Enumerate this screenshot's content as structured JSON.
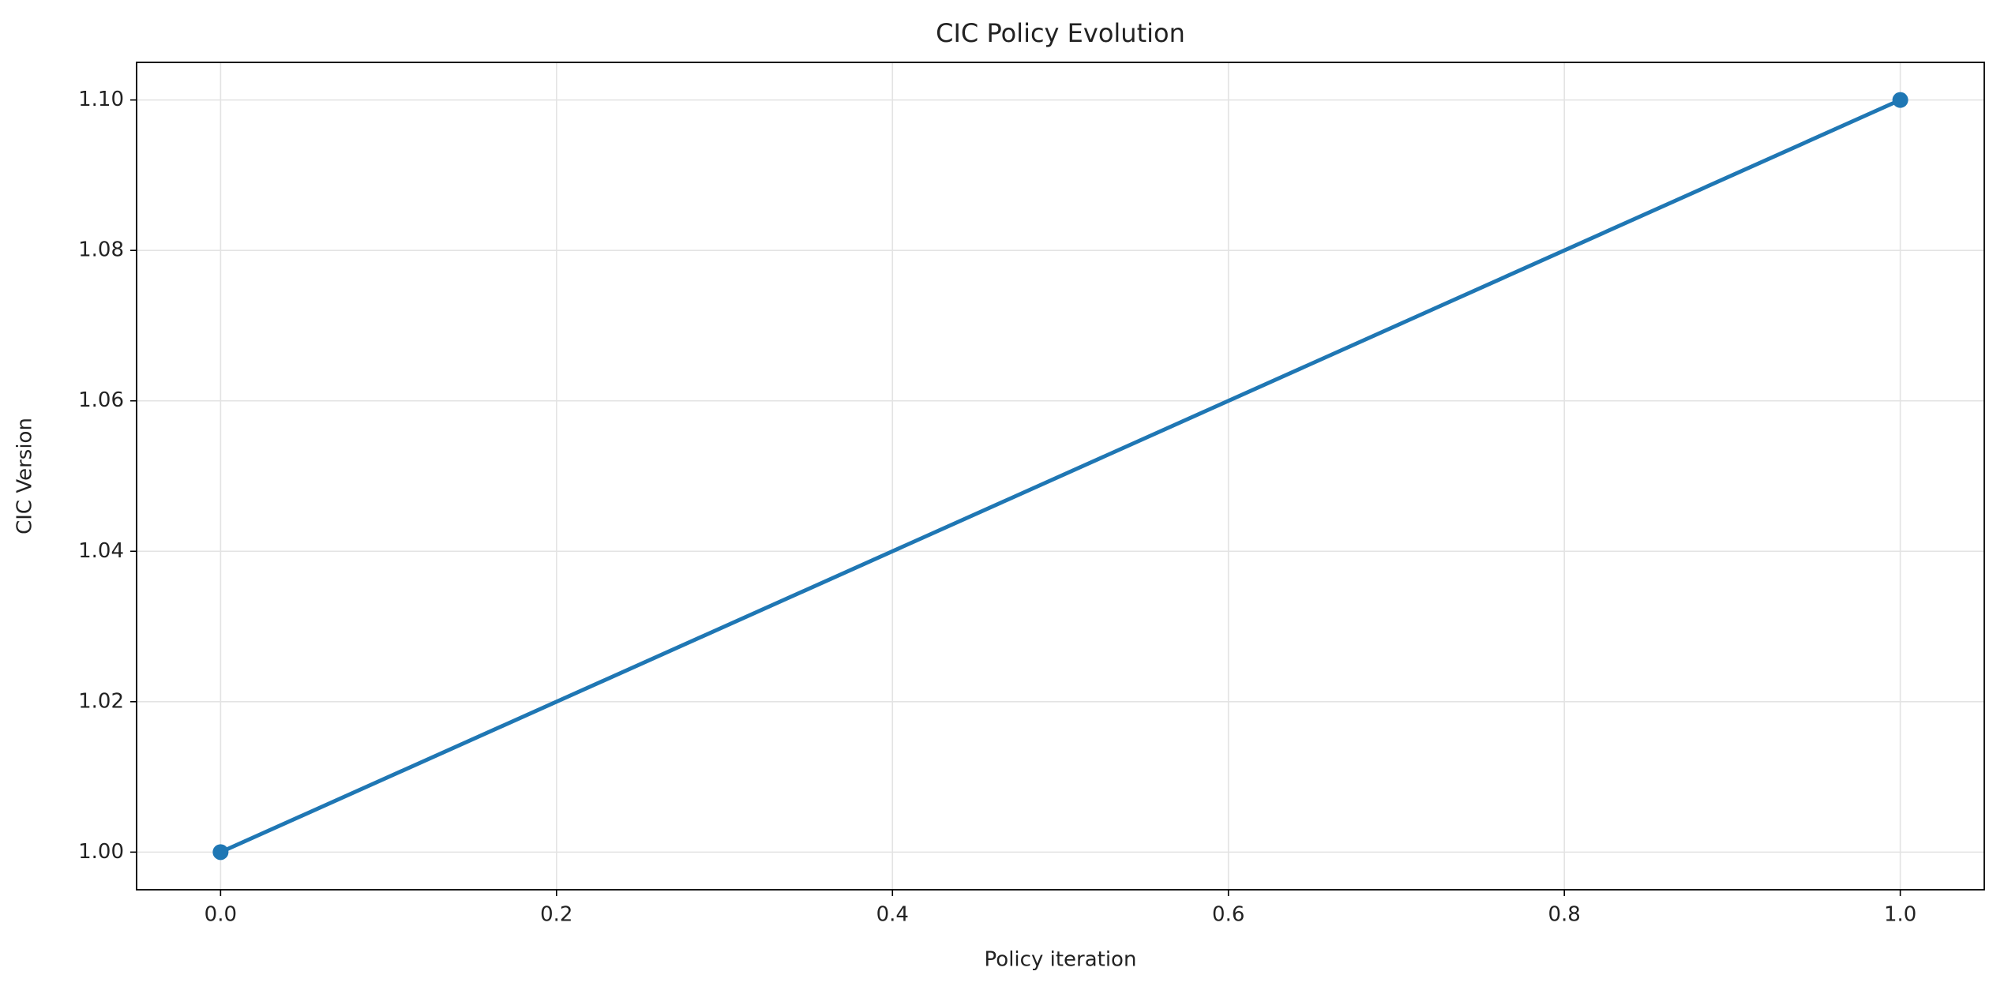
{
  "chart_data": {
    "type": "line",
    "title": "CIC Policy Evolution",
    "x_label": "Policy iteration",
    "y_label": "CIC Version",
    "x": [
      0,
      1
    ],
    "values": [
      1.0,
      1.1
    ],
    "color": "#1f77b4",
    "xlim": [
      -0.05,
      1.05
    ],
    "ylim": [
      0.995,
      1.105
    ],
    "xticks": [
      {
        "value": 0,
        "label": "0.0"
      },
      0.2,
      0.4,
      0.6,
      0.8,
      {
        "value": 1,
        "label": "1.0"
      }
    ],
    "yticks": [
      {
        "value": 1.0,
        "label": "1.00"
      },
      1.02,
      1.04,
      1.06,
      1.08,
      {
        "value": 1.1,
        "label": "1.10"
      }
    ],
    "grid": true,
    "markers": true
  }
}
